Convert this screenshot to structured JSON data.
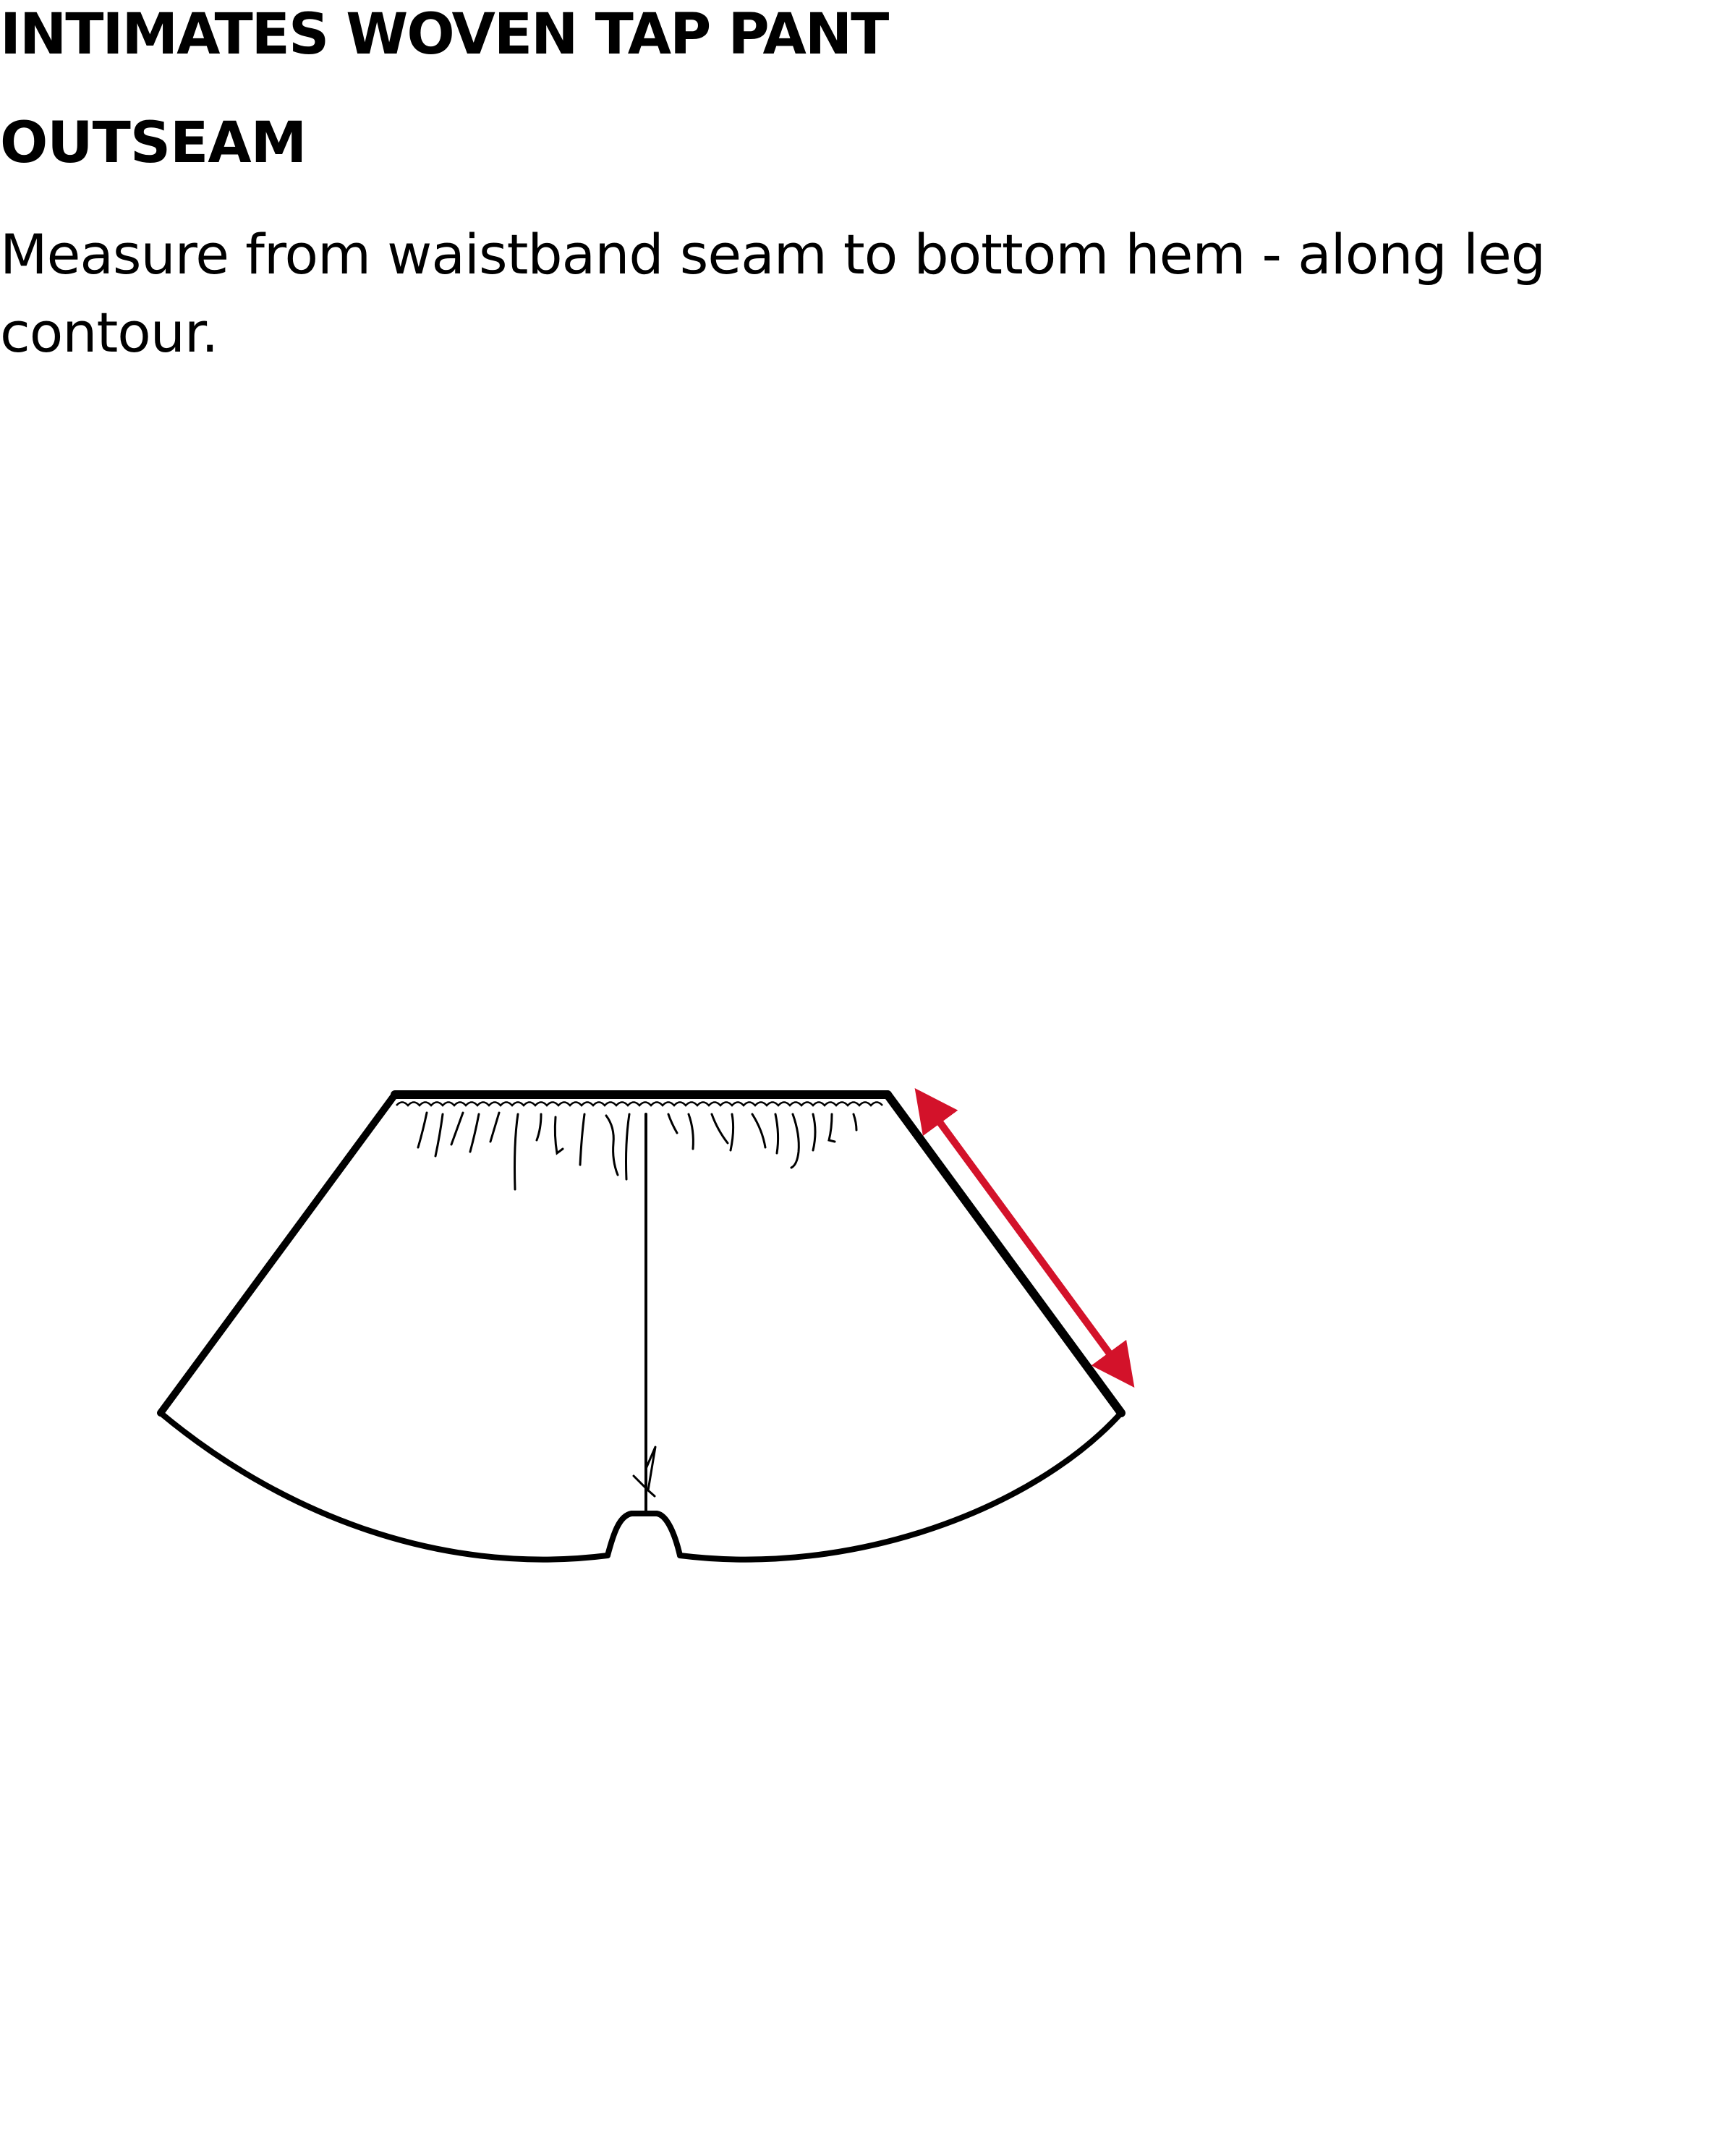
{
  "header": {
    "title": "INTIMATES WOVEN TAP PANT",
    "measurement_name": "OUTSEAM"
  },
  "instruction": {
    "text": "Measure from waistband seam to bottom hem - along leg contour."
  },
  "diagram": {
    "garment_icon": "tap-pant-flat-sketch",
    "arrow_icon": "double-headed-arrow",
    "colors": {
      "outline": "#000000",
      "measure_arrow": "#d3122a",
      "background": "#ffffff"
    }
  }
}
